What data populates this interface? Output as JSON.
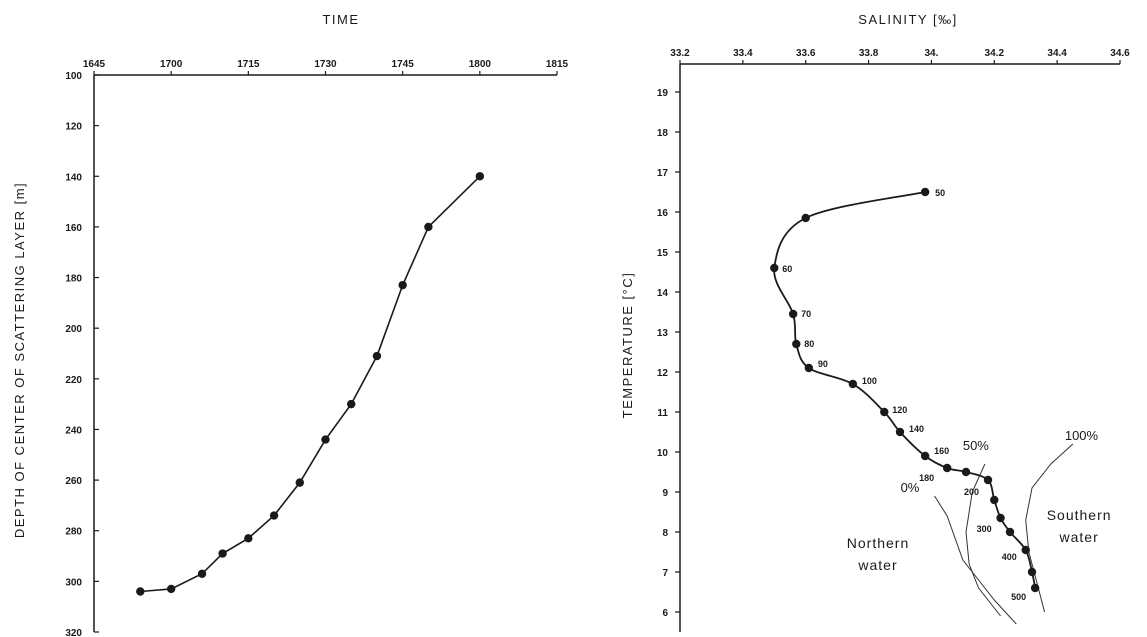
{
  "chart_data": [
    {
      "type": "line",
      "title": "",
      "xlabel": "TIME",
      "ylabel": "DEPTH OF CENTER OF SCATTERING LAYER [m]",
      "x_ticks": [
        "1645",
        "1700",
        "1715",
        "1730",
        "1745",
        "1800",
        "1815"
      ],
      "y_ticks": [
        "100",
        "120",
        "140",
        "160",
        "180",
        "200",
        "220",
        "240",
        "260",
        "280",
        "300",
        "320"
      ],
      "xlim_hhmm": [
        "1645",
        "1815"
      ],
      "ylim": [
        100,
        320
      ],
      "y_inverted": true,
      "x_axis_position": "top",
      "grid": false,
      "series": [
        {
          "x": [
            "1654",
            "1700",
            "1706",
            "1710",
            "1715",
            "1720",
            "1725",
            "1730",
            "1735",
            "1740",
            "1745",
            "1750",
            "1800"
          ],
          "y": [
            304,
            303,
            297,
            289,
            283,
            274,
            261,
            244,
            230,
            211,
            183,
            160,
            140
          ]
        }
      ]
    },
    {
      "type": "line",
      "title": "",
      "xlabel": "SALINITY [‰]",
      "ylabel": "TEMPERATURE [°C]",
      "x_ticks": [
        "33.2",
        "33.4",
        "33.6",
        "33.8",
        "34.",
        "34.2",
        "34.4",
        "34.6"
      ],
      "y_ticks": [
        "6",
        "7",
        "8",
        "9",
        "10",
        "11",
        "12",
        "13",
        "14",
        "15",
        "16",
        "17",
        "18",
        "19"
      ],
      "xlim": [
        33.2,
        34.6
      ],
      "ylim": [
        5.5,
        19.7
      ],
      "x_axis_position": "top",
      "grid": false,
      "series": [
        {
          "x": [
            33.98,
            33.6,
            33.5,
            33.56,
            33.57,
            33.61,
            33.75,
            33.85,
            33.9,
            33.98,
            34.05,
            34.11,
            34.18,
            34.2,
            34.22,
            34.25,
            34.3,
            34.32,
            34.33
          ],
          "y": [
            16.5,
            15.85,
            14.6,
            13.45,
            12.7,
            12.1,
            11.7,
            11.0,
            10.5,
            9.9,
            9.6,
            9.5,
            9.3,
            8.8,
            8.35,
            8.0,
            7.55,
            7.0,
            6.6
          ],
          "point_labels": [
            "50",
            "",
            "60",
            "70",
            "80",
            "90",
            "100",
            "120",
            "140",
            "160",
            "180",
            "",
            "200",
            "",
            "300",
            "",
            "400",
            "",
            "500"
          ]
        }
      ],
      "mixing_lines": [
        {
          "label": "0%",
          "x": [
            34.01,
            34.05,
            34.1,
            34.15,
            34.2,
            34.27
          ],
          "y": [
            8.9,
            8.4,
            7.3,
            6.8,
            6.3,
            5.7
          ]
        },
        {
          "label": "50%",
          "x": [
            34.17,
            34.13,
            34.11,
            34.12,
            34.15,
            34.22
          ],
          "y": [
            9.7,
            9.0,
            8.0,
            7.2,
            6.6,
            5.9
          ]
        },
        {
          "label": "100%",
          "x": [
            34.45,
            34.38,
            34.32,
            34.3,
            34.31,
            34.34,
            34.36
          ],
          "y": [
            10.2,
            9.7,
            9.1,
            8.3,
            7.5,
            6.6,
            6.0
          ]
        }
      ],
      "region_labels": [
        {
          "lines": [
            "Northern",
            "water"
          ],
          "x": 33.83,
          "y": 7.6
        },
        {
          "lines": [
            "Southern",
            "water"
          ],
          "x": 34.47,
          "y": 8.3
        }
      ]
    }
  ],
  "colors": {
    "ink": "#1a1a1a",
    "background": "#ffffff",
    "thin_line": "#333333"
  }
}
